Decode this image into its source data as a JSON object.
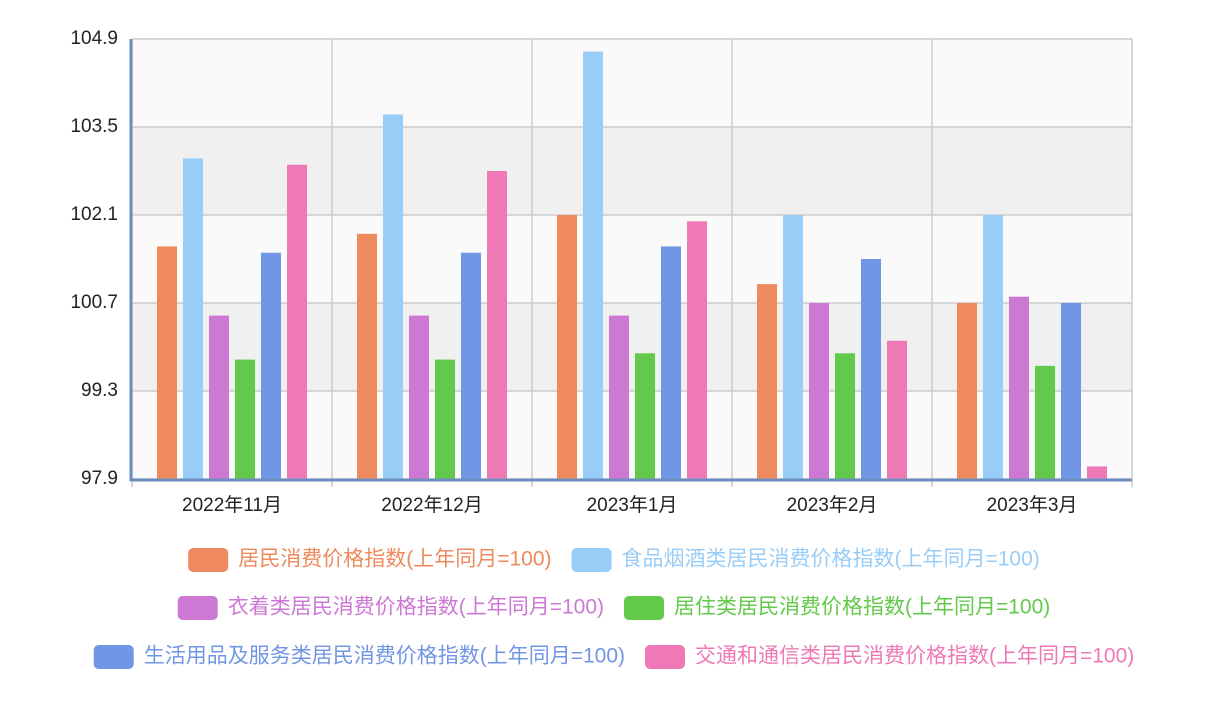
{
  "chart_data": {
    "type": "bar",
    "categories": [
      "2022年11月",
      "2022年12月",
      "2023年1月",
      "2023年2月",
      "2023年3月"
    ],
    "series": [
      {
        "name": "居民消费价格指数(上年同月=100)",
        "color": "#ee8a5e",
        "values": [
          101.6,
          101.8,
          102.1,
          101.0,
          100.7
        ]
      },
      {
        "name": "食品烟酒类居民消费价格指数(上年同月=100)",
        "color": "#99cdf7",
        "values": [
          103.0,
          103.7,
          104.7,
          102.1,
          102.1
        ]
      },
      {
        "name": "衣着类居民消费价格指数(上年同月=100)",
        "color": "#cd78d5",
        "values": [
          100.5,
          100.5,
          100.5,
          100.7,
          100.8
        ]
      },
      {
        "name": "居住类居民消费价格指数(上年同月=100)",
        "color": "#62c94a",
        "values": [
          99.8,
          99.8,
          99.9,
          99.9,
          99.7
        ]
      },
      {
        "name": "生活用品及服务类居民消费价格指数(上年同月=100)",
        "color": "#7096e5",
        "values": [
          101.5,
          101.5,
          101.6,
          101.4,
          100.7
        ]
      },
      {
        "name": "交通和通信类居民消费价格指数(上年同月=100)",
        "color": "#ee79b6",
        "values": [
          102.9,
          102.8,
          102.0,
          100.1,
          98.1
        ]
      }
    ],
    "ylim": [
      97.9,
      104.9
    ],
    "yticks": [
      97.9,
      99.3,
      100.7,
      102.1,
      103.5,
      104.9
    ],
    "grid": true,
    "legend": "bottom"
  }
}
